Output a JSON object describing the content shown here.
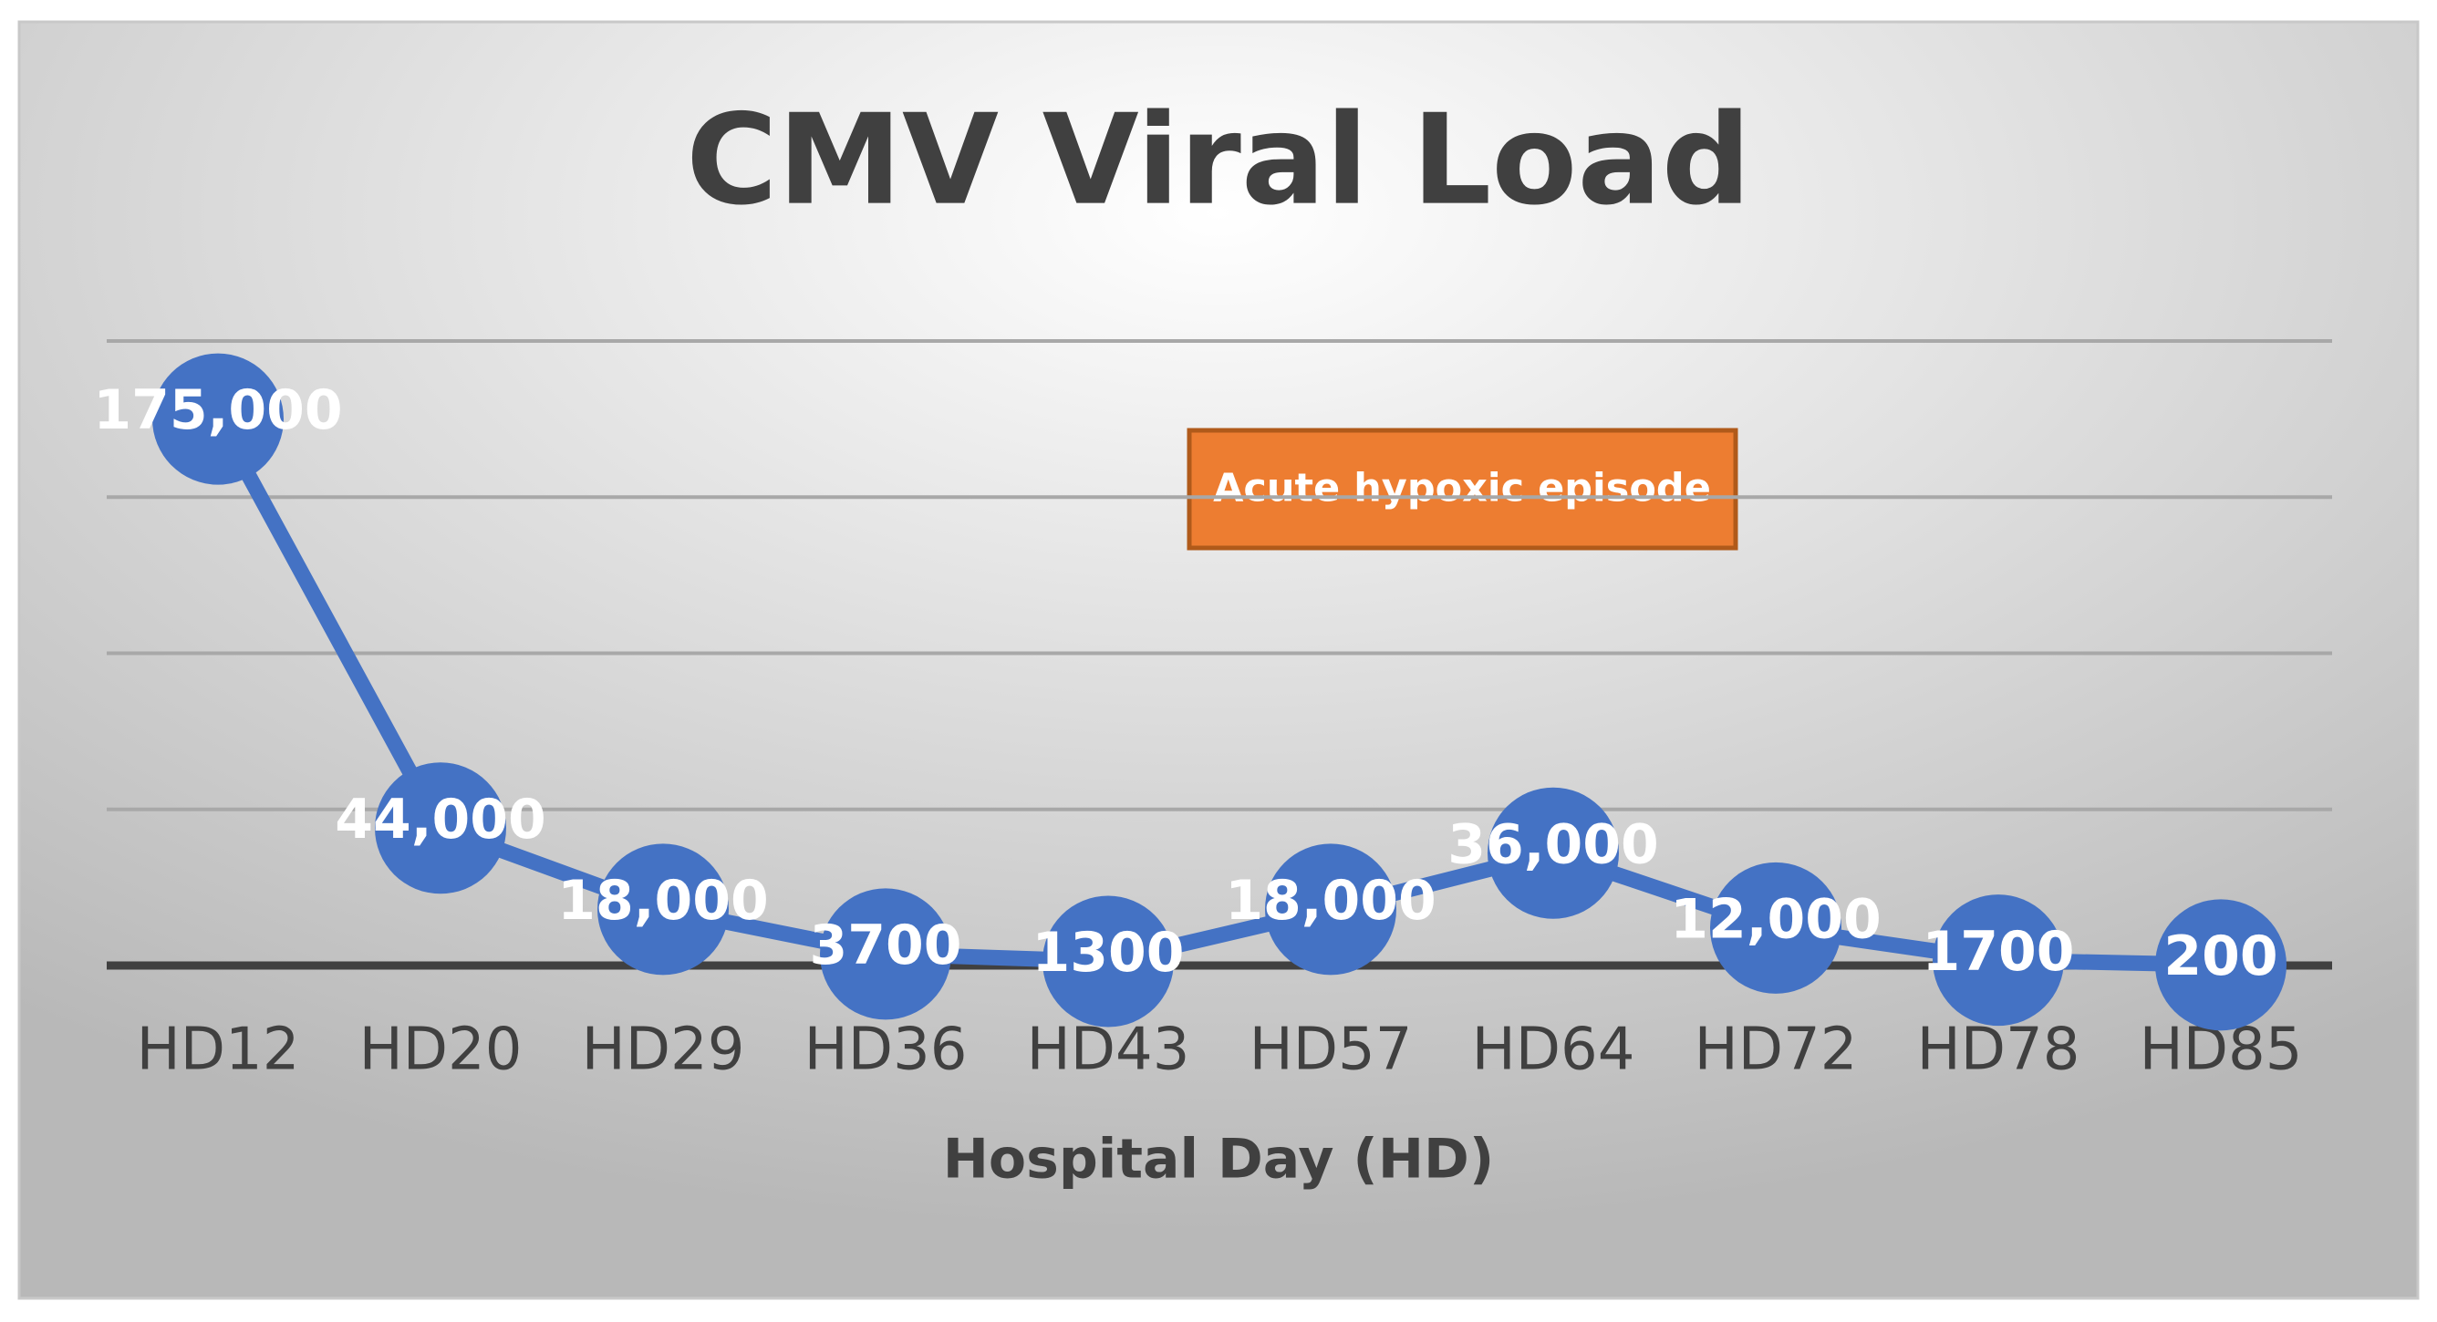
{
  "chart_data": {
    "type": "line",
    "title": "CMV Viral Load",
    "x_label": "Hospital Day (HD)",
    "categories": [
      "HD12",
      "HD20",
      "HD29",
      "HD36",
      "HD43",
      "HD57",
      "HD64",
      "HD72",
      "HD78",
      "HD85"
    ],
    "values": [
      175000,
      44000,
      18000,
      3700,
      1300,
      18000,
      36000,
      12000,
      1700,
      200
    ],
    "value_labels": [
      "175,000",
      "44,000",
      "18,000",
      "3700",
      "1300",
      "18,000",
      "36,000",
      "12,000",
      "1700",
      "200"
    ],
    "color": "#4472c4",
    "ylim": [
      0,
      200000
    ],
    "yticks": [
      0,
      50000,
      100000,
      150000,
      200000
    ],
    "grid": true,
    "annotation": {
      "text": "Acute hypoxic episode",
      "color": "#ed7d31"
    }
  }
}
